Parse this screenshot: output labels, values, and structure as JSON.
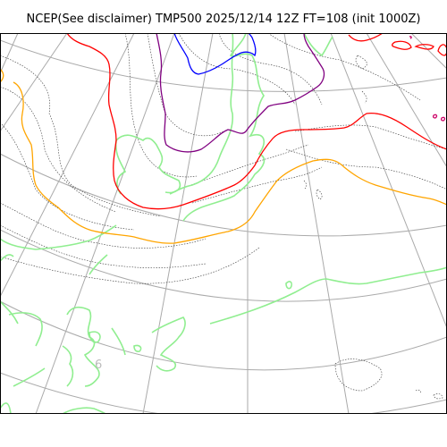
{
  "title": "NCEP(See disclaimer) TMP500 2025/12/14 12Z FT=108 (init 1000Z)",
  "map": {
    "variable": "TMP500",
    "colors": {
      "graticule": "#aaaaaa",
      "coastline": "#333333",
      "green_isotherm": "#90ee90",
      "orange_isotherm": "#ffa500",
      "red_isotherm": "#ff0000",
      "purple_isotherm": "#800080",
      "blue_isotherm": "#0000ff",
      "magenta_isotherm": "#cc0066",
      "contour_label": "#bbbbbb"
    },
    "contour_labels": [
      "6"
    ]
  }
}
